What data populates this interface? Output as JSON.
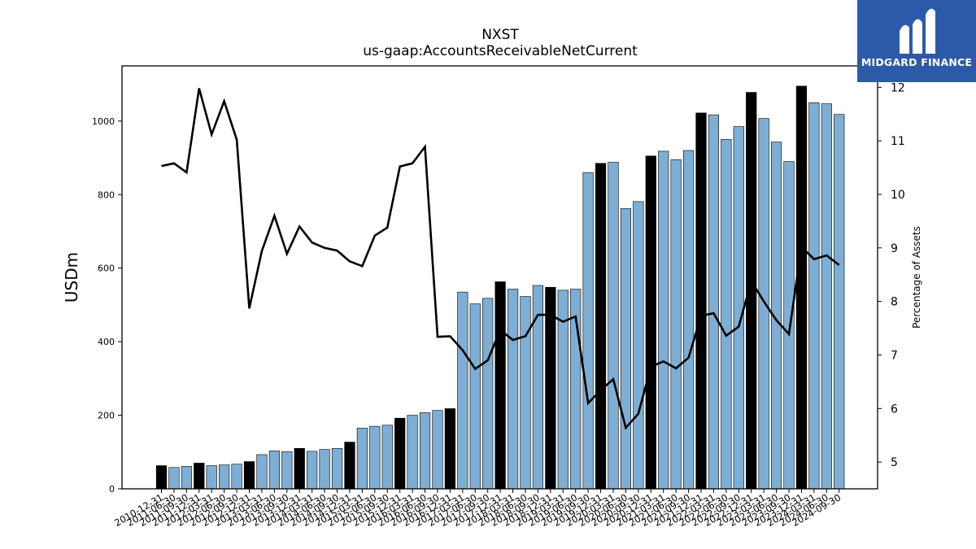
{
  "brand": {
    "name": "MIDGARD FINANCE",
    "logo_color": "#2d5aa8"
  },
  "chart_data": {
    "type": "bar",
    "title": "NXST",
    "subtitle": "us-gaap:AccountsReceivableNetCurrent",
    "ylabel": "USDm",
    "y2label": "Percentage of Assets",
    "ylim": [
      0,
      1150
    ],
    "y2lim": [
      4.5,
      12.4
    ],
    "yticks": [
      0,
      200,
      400,
      600,
      800,
      1000
    ],
    "y2ticks": [
      5,
      6,
      7,
      8,
      9,
      10,
      11,
      12
    ],
    "grid": false,
    "colors": {
      "bar": "#7eaed3",
      "bar_highlight": "#000000",
      "line": "#000000"
    },
    "categories": [
      "2010-12-31",
      "2011-06-30",
      "2011-09-30",
      "2011-12-31",
      "2012-03-31",
      "2012-06-30",
      "2012-09-30",
      "2012-12-31",
      "2013-03-31",
      "2013-06-30",
      "2013-09-30",
      "2013-12-31",
      "2014-03-31",
      "2014-06-30",
      "2014-09-30",
      "2014-12-31",
      "2015-03-31",
      "2015-06-30",
      "2015-09-30",
      "2015-12-31",
      "2016-03-31",
      "2016-06-30",
      "2016-09-30",
      "2016-12-31",
      "2017-03-31",
      "2017-06-30",
      "2017-09-30",
      "2017-12-31",
      "2018-03-31",
      "2018-06-30",
      "2018-09-30",
      "2018-12-31",
      "2019-03-31",
      "2019-06-30",
      "2019-09-30",
      "2019-12-31",
      "2020-03-31",
      "2020-06-30",
      "2020-09-30",
      "2020-12-31",
      "2021-03-31",
      "2021-06-30",
      "2021-09-30",
      "2021-12-31",
      "2022-03-31",
      "2022-06-30",
      "2022-09-30",
      "2022-12-31",
      "2023-03-31",
      "2023-06-30",
      "2023-09-30",
      "2023-12-31",
      "2024-03-31",
      "2024-06-30",
      "2024-09-30"
    ],
    "series": [
      {
        "kind": "bar",
        "values": [
          63,
          58,
          61,
          70,
          63,
          65,
          67,
          74,
          93,
          103,
          101,
          110,
          102,
          107,
          110,
          127,
          165,
          170,
          173,
          192,
          200,
          207,
          213,
          218,
          535,
          503,
          518,
          563,
          543,
          523,
          553,
          548,
          540,
          543,
          860,
          885,
          888,
          762,
          781,
          905,
          918,
          895,
          920,
          1022,
          1017,
          950,
          985,
          1078,
          1007,
          943,
          890,
          1095,
          1050,
          1047,
          1018
        ],
        "highlight": [
          true,
          false,
          false,
          true,
          false,
          false,
          false,
          true,
          false,
          false,
          false,
          true,
          false,
          false,
          false,
          true,
          false,
          false,
          false,
          true,
          false,
          false,
          false,
          true,
          false,
          false,
          false,
          true,
          false,
          false,
          false,
          true,
          false,
          false,
          false,
          true,
          false,
          false,
          false,
          true,
          false,
          false,
          false,
          true,
          false,
          false,
          false,
          true,
          false,
          false,
          false,
          true,
          false,
          false,
          false
        ]
      },
      {
        "kind": "line",
        "axis": "right",
        "values": [
          10.53,
          10.58,
          10.41,
          11.98,
          11.12,
          11.74,
          11.02,
          7.87,
          8.94,
          9.6,
          8.89,
          9.4,
          9.1,
          9.0,
          8.95,
          8.75,
          8.66,
          9.23,
          9.38,
          10.52,
          10.58,
          10.89,
          7.34,
          7.35,
          7.09,
          6.74,
          6.9,
          7.47,
          7.28,
          7.35,
          7.75,
          7.75,
          7.62,
          7.72,
          6.1,
          6.34,
          6.55,
          5.64,
          5.9,
          6.78,
          6.88,
          6.75,
          6.95,
          7.73,
          7.78,
          7.36,
          7.53,
          8.38,
          8.0,
          7.65,
          7.39,
          9.02,
          8.79,
          8.86,
          8.68
        ]
      }
    ]
  }
}
